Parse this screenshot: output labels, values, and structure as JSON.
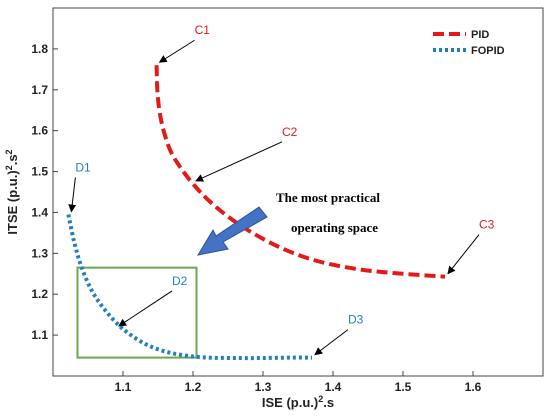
{
  "chart_data": {
    "type": "line",
    "xlabel": "ISE (p.u.)",
    "xlabel_sup": "2",
    "xlabel_tail": ".s",
    "ylabel": "ITSE (p.u.)",
    "ylabel_sup1": "2",
    "ylabel_mid": ".s",
    "ylabel_sup2": "2",
    "xlim": [
      1.0,
      1.7
    ],
    "ylim": [
      1.0,
      1.9
    ],
    "xticks": [
      1.1,
      1.2,
      1.3,
      1.4,
      1.5,
      1.6
    ],
    "xtick_labels": [
      "1.1",
      "1.2",
      "1.3",
      "1.4",
      "1.5",
      "1.6"
    ],
    "yticks": [
      1.1,
      1.2,
      1.3,
      1.4,
      1.5,
      1.6,
      1.7,
      1.8
    ],
    "ytick_labels": [
      "1.1",
      "1.2",
      "1.3",
      "1.4",
      "1.5",
      "1.6",
      "1.7",
      "1.8"
    ],
    "legend_position": "top-right",
    "series": [
      {
        "name": "PID",
        "color": "#e41a1a",
        "style": "dashed",
        "x": [
          1.148,
          1.149,
          1.152,
          1.158,
          1.168,
          1.182,
          1.2,
          1.222,
          1.25,
          1.285,
          1.33,
          1.38,
          1.44,
          1.5,
          1.56
        ],
        "y": [
          1.76,
          1.7,
          1.65,
          1.6,
          1.55,
          1.51,
          1.47,
          1.43,
          1.39,
          1.35,
          1.31,
          1.28,
          1.26,
          1.25,
          1.243
        ]
      },
      {
        "name": "FOPID",
        "color": "#1f7fc4",
        "style": "dotted",
        "x": [
          1.022,
          1.03,
          1.04,
          1.055,
          1.075,
          1.1,
          1.13,
          1.16,
          1.19,
          1.22,
          1.26,
          1.3,
          1.34,
          1.37
        ],
        "y": [
          1.395,
          1.33,
          1.27,
          1.21,
          1.16,
          1.115,
          1.08,
          1.06,
          1.05,
          1.045,
          1.044,
          1.044,
          1.045,
          1.045
        ]
      }
    ],
    "points": [
      {
        "label": "C1",
        "x": 1.148,
        "y": 1.76,
        "color": "#e41a1a"
      },
      {
        "label": "C2",
        "x": 1.2,
        "y": 1.47,
        "color": "#e41a1a"
      },
      {
        "label": "C3",
        "x": 1.56,
        "y": 1.243,
        "color": "#e41a1a"
      },
      {
        "label": "D1",
        "x": 1.022,
        "y": 1.395,
        "color": "#1f7fc4"
      },
      {
        "label": "D2",
        "x": 1.09,
        "y": 1.115,
        "color": "#1f7fc4"
      },
      {
        "label": "D3",
        "x": 1.37,
        "y": 1.045,
        "color": "#1f7fc4"
      }
    ],
    "region": {
      "x": [
        1.035,
        1.205
      ],
      "y": [
        1.045,
        1.265
      ],
      "color": "#6aa84f"
    },
    "annotation": {
      "lines": [
        "The most practical",
        "operating space"
      ]
    }
  }
}
